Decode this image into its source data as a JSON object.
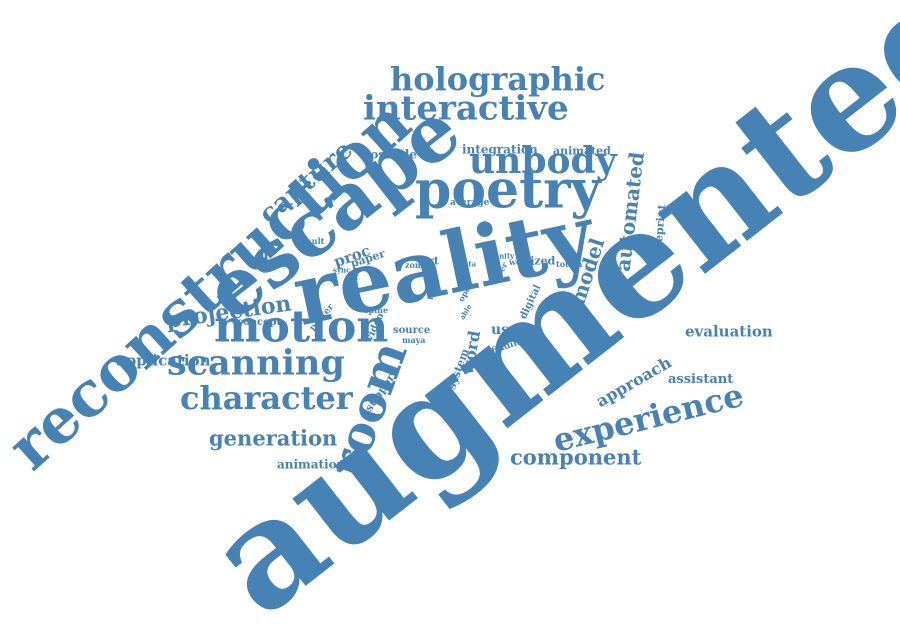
{
  "colors": {
    "word": "#4682b4",
    "background": "#ffffff"
  },
  "words": [
    "augmented",
    "reconstruction",
    "escape",
    "reality",
    "motion",
    "poetry",
    "holographic",
    "interactive",
    "unbody",
    "room",
    "scanning",
    "character",
    "experience",
    "capture",
    "projection",
    "generation",
    "component",
    "automated",
    "model",
    "approach",
    "evaluation",
    "application",
    "possible",
    "integration",
    "animated",
    "animation",
    "blueprint",
    "proc",
    "average",
    "result",
    "sync",
    "paper",
    "zone",
    "art",
    "data",
    "unity",
    "world",
    "sized",
    "totem",
    "other",
    "life",
    "open",
    "digital",
    "spine",
    "able",
    "poster",
    "concept",
    "video",
    "source",
    "maya",
    "system",
    "word",
    "user",
    "finding",
    "support",
    "assistant"
  ]
}
